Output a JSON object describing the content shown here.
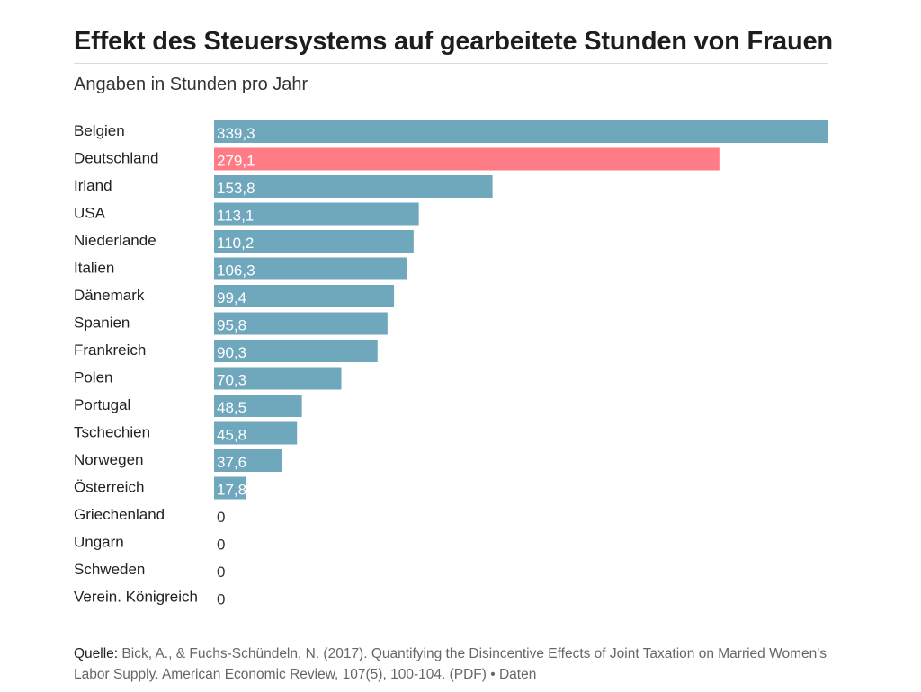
{
  "chart_data": {
    "type": "bar",
    "orientation": "horizontal",
    "title": "Effekt des Steuersystems auf gearbeitete Stunden von Frauen",
    "subtitle": "Angaben in Stunden pro Jahr",
    "xlim": [
      0,
      339.3
    ],
    "categories": [
      "Belgien",
      "Deutschland",
      "Irland",
      "USA",
      "Niederlande",
      "Italien",
      "Dänemark",
      "Spanien",
      "Frankreich",
      "Polen",
      "Portugal",
      "Tschechien",
      "Norwegen",
      "Österreich",
      "Griechenland",
      "Ungarn",
      "Schweden",
      "Verein. Königreich"
    ],
    "values": [
      339.3,
      279.1,
      153.8,
      113.1,
      110.2,
      106.3,
      99.4,
      95.8,
      90.3,
      70.3,
      48.5,
      45.8,
      37.6,
      17.8,
      0,
      0,
      0,
      0
    ],
    "value_labels": [
      "339,3",
      "279,1",
      "153,8",
      "113,1",
      "110,2",
      "106,3",
      "99,4",
      "95,8",
      "90,3",
      "70,3",
      "48,5",
      "45,8",
      "37,6",
      "17,8",
      "0",
      "0",
      "0",
      "0"
    ],
    "highlight_category": "Deutschland",
    "colors": {
      "default": "#6fa7bd",
      "highlight": "#ff7b86",
      "label_inside": "#ffffff",
      "label_outside": "#333333",
      "category_text": "#222222"
    }
  },
  "source": {
    "label": "Quelle:",
    "text": " Bick, A., & Fuchs-Schündeln, N. (2017). Quantifying the Disincentive Effects of Joint Taxation on Married Women's Labor Supply. American Economic Review, 107(5), 100-104. ",
    "pdf_link": "(PDF)",
    "separator": " • ",
    "data_link": "Daten"
  }
}
